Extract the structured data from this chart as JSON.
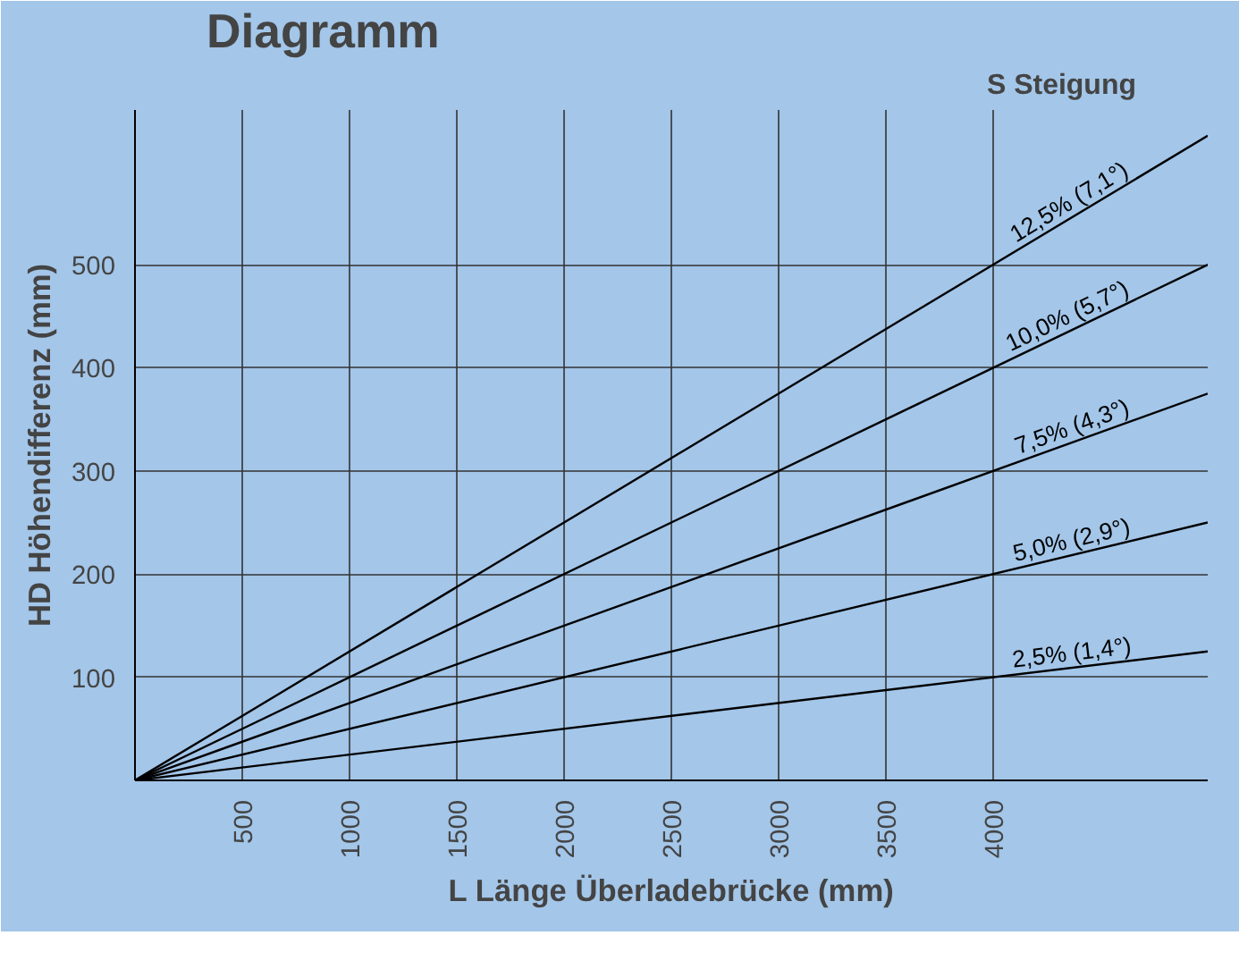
{
  "chart_data": {
    "type": "line",
    "title": "Diagramm",
    "legend_title": "S Steigung",
    "xlabel": "L Länge Überladebrücke (mm)",
    "ylabel": "HD Höhendifferenz (mm)",
    "xlim": [
      0,
      5000
    ],
    "ylim": [
      0,
      650
    ],
    "xticks": [
      500,
      1000,
      1500,
      2000,
      2500,
      3000,
      3500,
      4000
    ],
    "yticks": [
      100,
      200,
      300,
      400,
      500
    ],
    "grid": true,
    "x": [
      0,
      5000
    ],
    "series": [
      {
        "name": "12,5% (7,1°)",
        "color": "#000000",
        "values": [
          0,
          625
        ]
      },
      {
        "name": "10,0% (5,7°)",
        "color": "#000000",
        "values": [
          0,
          500
        ]
      },
      {
        "name": "7,5% (4,3°)",
        "color": "#000000",
        "values": [
          0,
          375
        ]
      },
      {
        "name": "5,0% (2,9°)",
        "color": "#000000",
        "values": [
          0,
          250
        ]
      },
      {
        "name": "2,5% (1,4°)",
        "color": "#000000",
        "values": [
          0,
          125
        ]
      }
    ]
  }
}
